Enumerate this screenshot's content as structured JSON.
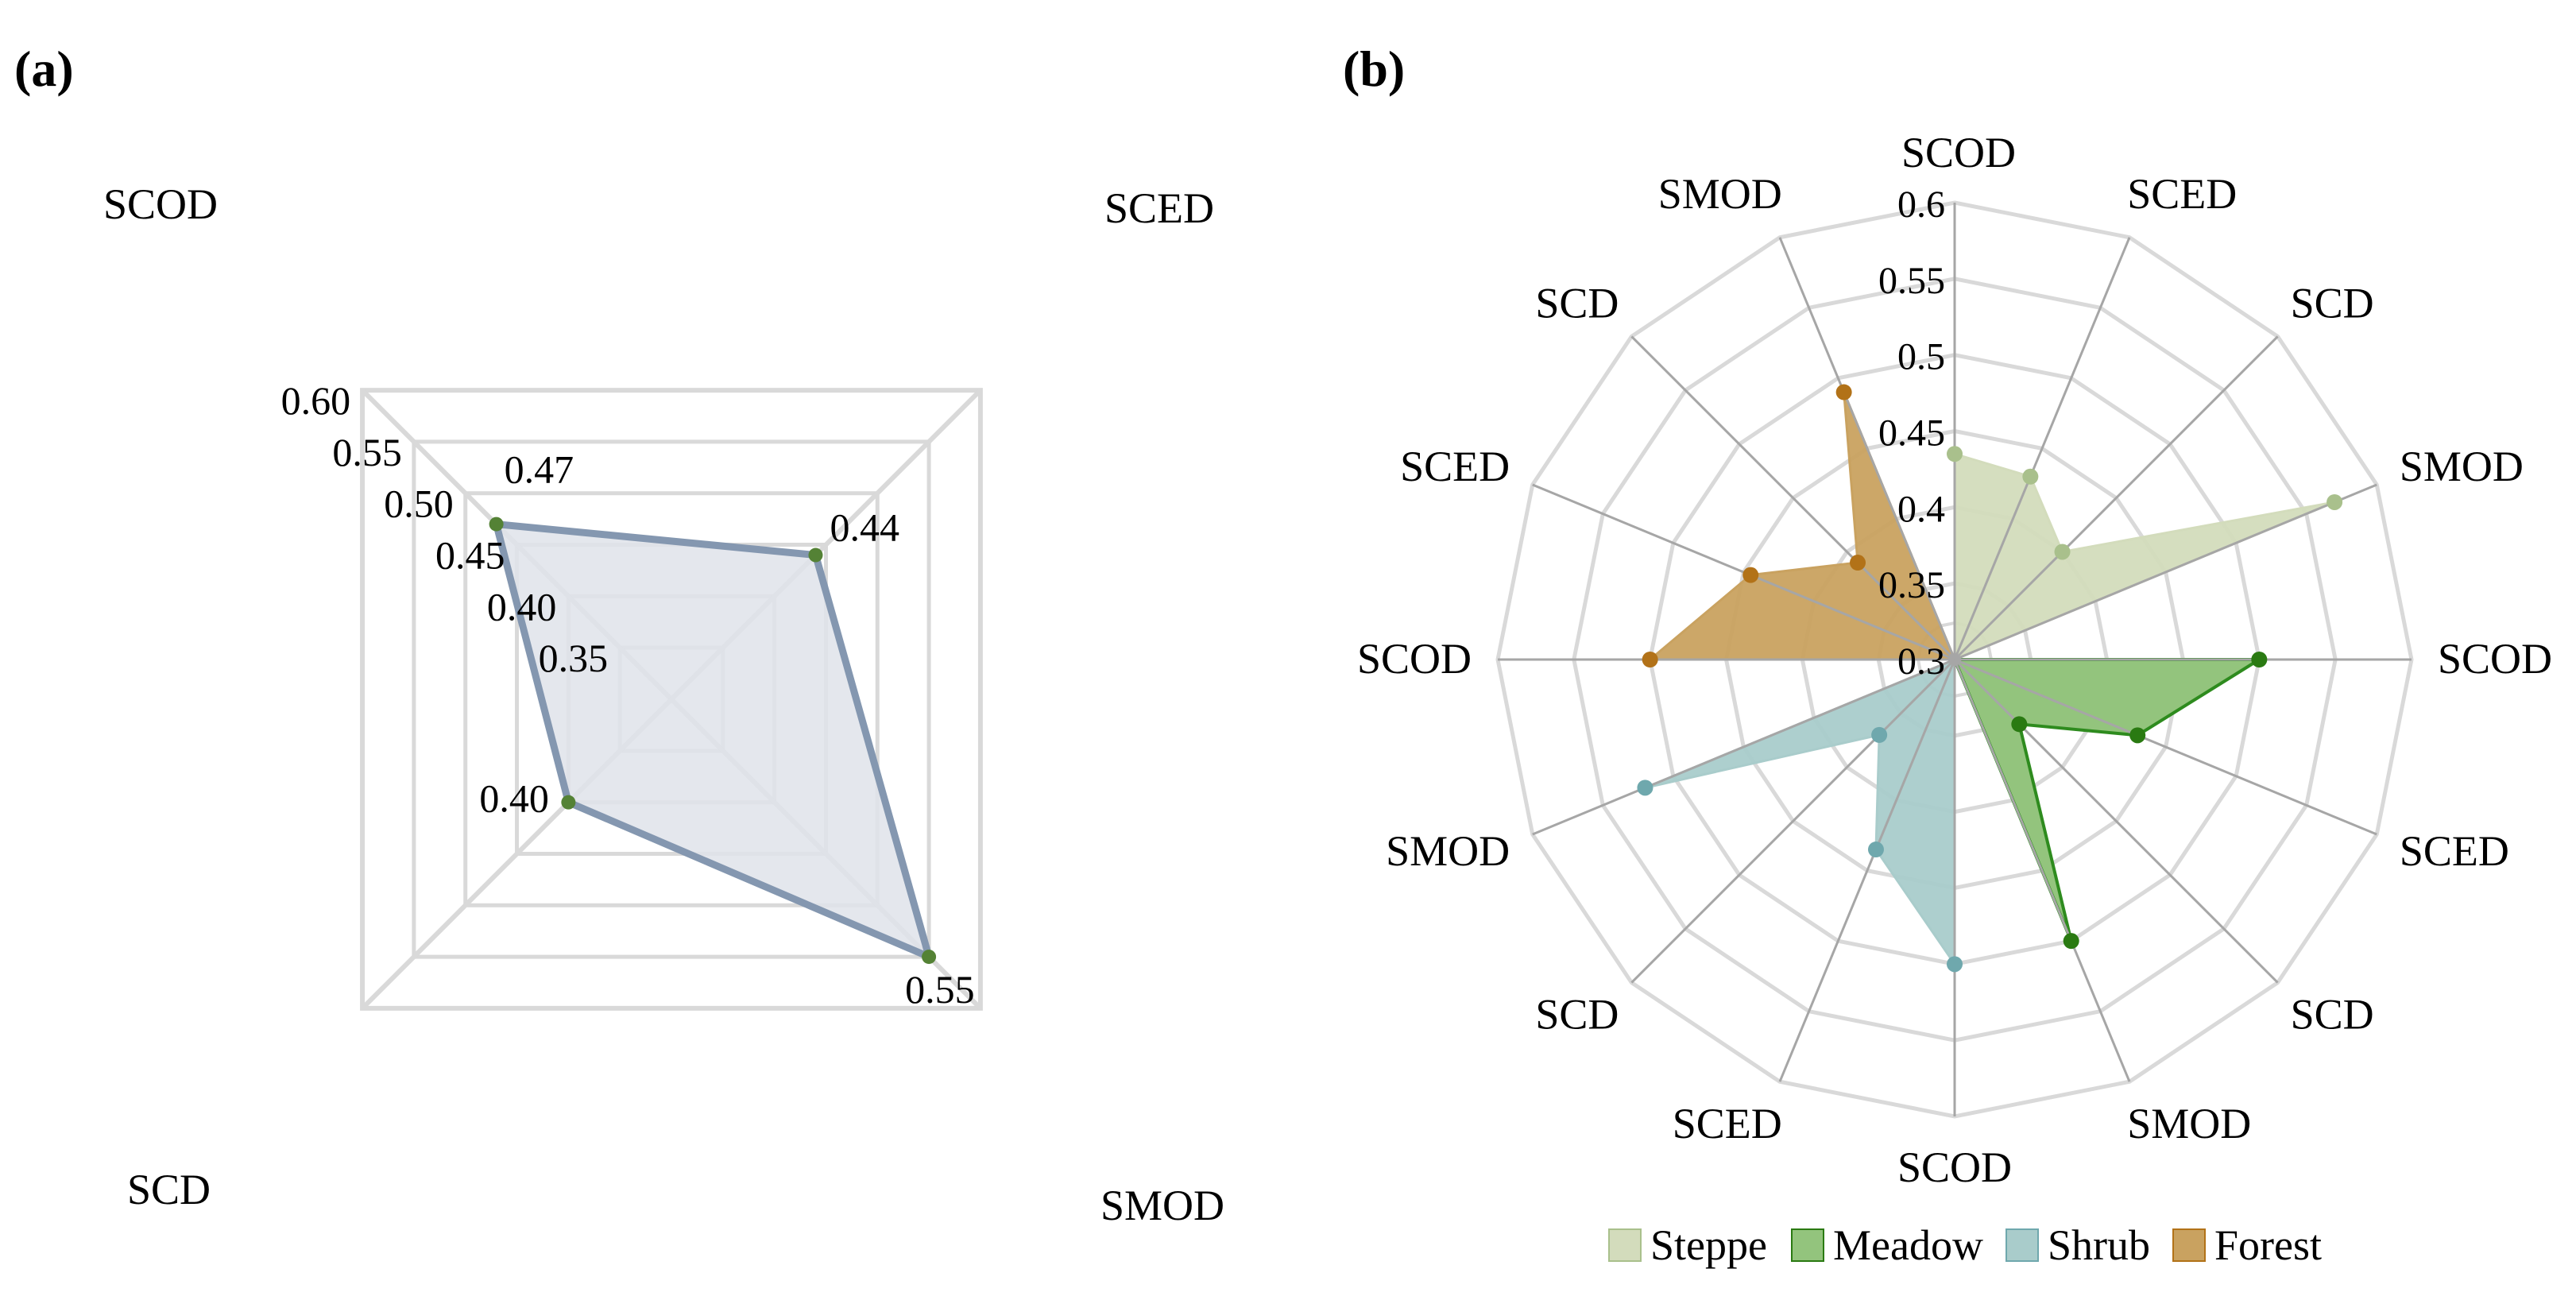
{
  "panels": {
    "a_label": "(a)",
    "b_label": "(b)"
  },
  "chart_data": [
    {
      "type": "radar",
      "panel": "(a)",
      "title": "",
      "grid_shape": "square",
      "grid": true,
      "axes": [
        "SCOD",
        "SCED",
        "SMOD",
        "SCD"
      ],
      "axis_ticks": [
        {
          "value": 0.6,
          "label": "0.60"
        },
        {
          "value": 0.55,
          "label": "0.55"
        },
        {
          "value": 0.5,
          "label": "0.50"
        },
        {
          "value": 0.45,
          "label": "0.45"
        },
        {
          "value": 0.4,
          "label": "0.40"
        },
        {
          "value": 0.35,
          "label": "0.35"
        }
      ],
      "range": [
        0.3,
        0.6
      ],
      "series": [
        {
          "name": "",
          "values": [
            0.47,
            0.44,
            0.55,
            0.4
          ],
          "data_labels": [
            "0.47",
            "0.44",
            "0.55",
            "0.40"
          ]
        }
      ],
      "colors": {
        "line": "#8497b0",
        "fill": "#dfe3ea",
        "marker": "#548235",
        "grid": "#d9d9d9",
        "text": "#000000"
      }
    },
    {
      "type": "radar",
      "panel": "(b)",
      "title": "",
      "grid_shape": "polygon",
      "grid": true,
      "axes": [
        "SCOD",
        "SCED",
        "SCD",
        "SMOD",
        "SCOD",
        "SCED",
        "SCD",
        "SMOD",
        "SCOD",
        "SCED",
        "SCD",
        "SMOD",
        "SCOD",
        "SCED",
        "SCD",
        "SMOD"
      ],
      "axis_ticks": [
        {
          "value": 0.6,
          "label": "0.6"
        },
        {
          "value": 0.55,
          "label": "0.55"
        },
        {
          "value": 0.5,
          "label": "0.5"
        },
        {
          "value": 0.45,
          "label": "0.45"
        },
        {
          "value": 0.4,
          "label": "0.4"
        },
        {
          "value": 0.35,
          "label": "0.35"
        },
        {
          "value": 0.3,
          "label": "0.3"
        }
      ],
      "range": [
        0.3,
        0.6
      ],
      "series": [
        {
          "name": "Steppe",
          "start_index": 0,
          "values": [
            0.435,
            0.43,
            0.4,
            0.57
          ]
        },
        {
          "name": "Meadow",
          "start_index": 4,
          "values": [
            0.5,
            0.43,
            0.36,
            0.5
          ]
        },
        {
          "name": "Shrub",
          "start_index": 8,
          "values": [
            0.5,
            0.435,
            0.37,
            0.52
          ]
        },
        {
          "name": "Forest",
          "start_index": 12,
          "values": [
            0.5,
            0.445,
            0.39,
            0.49
          ]
        }
      ],
      "legend": {
        "position": "bottom",
        "entries": [
          "Steppe",
          "Meadow",
          "Shrub",
          "Forest"
        ]
      },
      "colors": {
        "Steppe": {
          "fill": "#d3dcbc",
          "line": "#d3dcbc",
          "marker": "#a9c08c"
        },
        "Meadow": {
          "fill": "#93c47d",
          "line": "#2e8b1e",
          "marker": "#2a7a12"
        },
        "Shrub": {
          "fill": "#a9cccb",
          "line": "#a9cccb",
          "marker": "#6fa8ad"
        },
        "Forest": {
          "fill": "#c9a260",
          "line": "#c9a260",
          "marker": "#b27218"
        },
        "grid_ring": "#d9d9d9",
        "spoke": "#a6a6a6",
        "text": "#000000"
      }
    }
  ]
}
